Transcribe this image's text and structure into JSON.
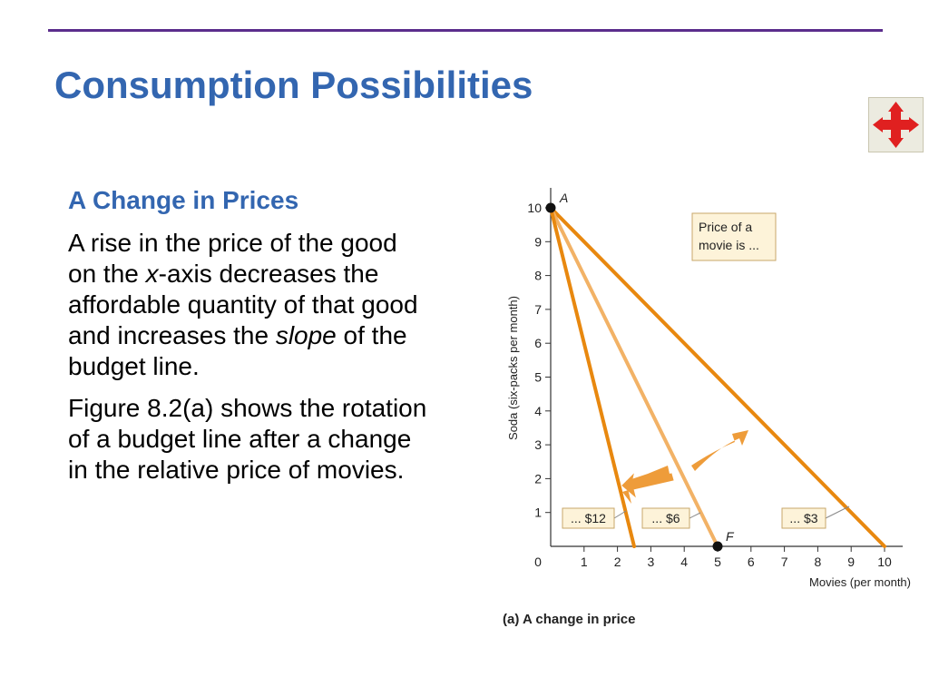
{
  "slide": {
    "title": "Consumption Possibilities",
    "subheading": "A Change in Prices",
    "p1": {
      "a": "A rise in the price of the good on the ",
      "b": "x",
      "c": "-axis decreases the affordable quantity of that good and increases the ",
      "d": "slope",
      "e": " of the budget line."
    },
    "p2": "Figure 8.2(a) shows the rotation of a budget line after a change in the relative price of movies."
  },
  "nav": {
    "icon": "four-way-arrows-icon",
    "color": "#e02020"
  },
  "chart_data": {
    "type": "line",
    "ylabel": "Soda (six-packs per month)",
    "xlabel": "Movies (per month)",
    "caption": "(a) A change in price",
    "xlim": [
      0,
      10
    ],
    "ylim": [
      0,
      10
    ],
    "x_ticks": [
      "1",
      "2",
      "3",
      "4",
      "5",
      "6",
      "7",
      "8",
      "9",
      "10"
    ],
    "y_ticks": [
      "1",
      "2",
      "3",
      "4",
      "5",
      "6",
      "7",
      "8",
      "9",
      "10"
    ],
    "origin_label": "0",
    "series": [
      {
        "name": "... $12",
        "color": "#e8880f",
        "points": [
          [
            0,
            10
          ],
          [
            2.5,
            0
          ]
        ]
      },
      {
        "name": "... $6",
        "color": "#f2b266",
        "points": [
          [
            0,
            10
          ],
          [
            5,
            0
          ]
        ]
      },
      {
        "name": "... $3",
        "color": "#e8880f",
        "points": [
          [
            0,
            10
          ],
          [
            10,
            0
          ]
        ]
      }
    ],
    "points": [
      {
        "label": "A",
        "x": 0,
        "y": 10
      },
      {
        "label": "F",
        "x": 5,
        "y": 0
      }
    ],
    "legend_title": "Price of a movie is ...",
    "legend_title_lines": [
      "Price of a",
      "movie is ..."
    ],
    "arrows": [
      {
        "direction": "inward",
        "color": "#ee9c3a"
      },
      {
        "direction": "outward",
        "color": "#ee9c3a"
      }
    ]
  }
}
